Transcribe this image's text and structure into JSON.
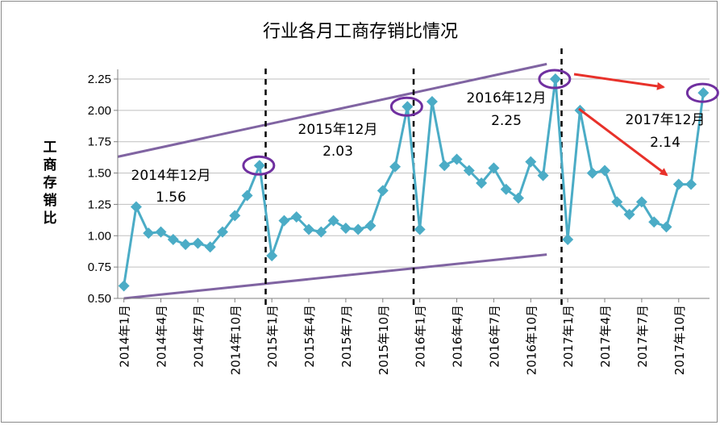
{
  "chart_data": {
    "type": "line",
    "title": "行业各月工商存销比情况",
    "ylabel": "工商存销比",
    "xlabel": "",
    "ylim": [
      0.5,
      2.25
    ],
    "yticks": [
      "0.50",
      "0.75",
      "1.00",
      "1.25",
      "1.50",
      "1.75",
      "2.00",
      "2.25"
    ],
    "grid": true,
    "x_ticklabels": [
      "2014年1月",
      "2014年4月",
      "2014年7月",
      "2014年10月",
      "2015年1月",
      "2015年4月",
      "2015年7月",
      "2015年10月",
      "2016年1月",
      "2016年4月",
      "2016年7月",
      "2016年10月",
      "2017年1月",
      "2017年4月",
      "2017年7月",
      "2017年10月"
    ],
    "series": [
      {
        "name": "",
        "color": "#4BACC6",
        "values": [
          0.6,
          1.23,
          1.02,
          1.03,
          0.97,
          0.93,
          0.94,
          0.91,
          1.03,
          1.16,
          1.32,
          1.56,
          0.84,
          1.12,
          1.15,
          1.05,
          1.03,
          1.12,
          1.06,
          1.05,
          1.08,
          1.36,
          1.55,
          2.03,
          1.05,
          2.07,
          1.56,
          1.61,
          1.52,
          1.42,
          1.54,
          1.37,
          1.3,
          1.59,
          1.48,
          2.25,
          0.97,
          2.0,
          1.5,
          1.52,
          1.27,
          1.17,
          1.27,
          1.11,
          1.07,
          1.41,
          1.41,
          2.14
        ]
      }
    ],
    "annotations": [
      {
        "line1": "2014年12月",
        "line2": "1.56"
      },
      {
        "line1": "2015年12月",
        "line2": "2.03"
      },
      {
        "line1": "2016年12月",
        "line2": "2.25"
      },
      {
        "line1": "2017年12月",
        "line2": "2.14"
      }
    ],
    "colors": {
      "trend": "#8064A2",
      "arrow": "#E8312A",
      "highlight": "#7030A0",
      "divider": "#000000",
      "grid": "#BFBFBF"
    }
  }
}
